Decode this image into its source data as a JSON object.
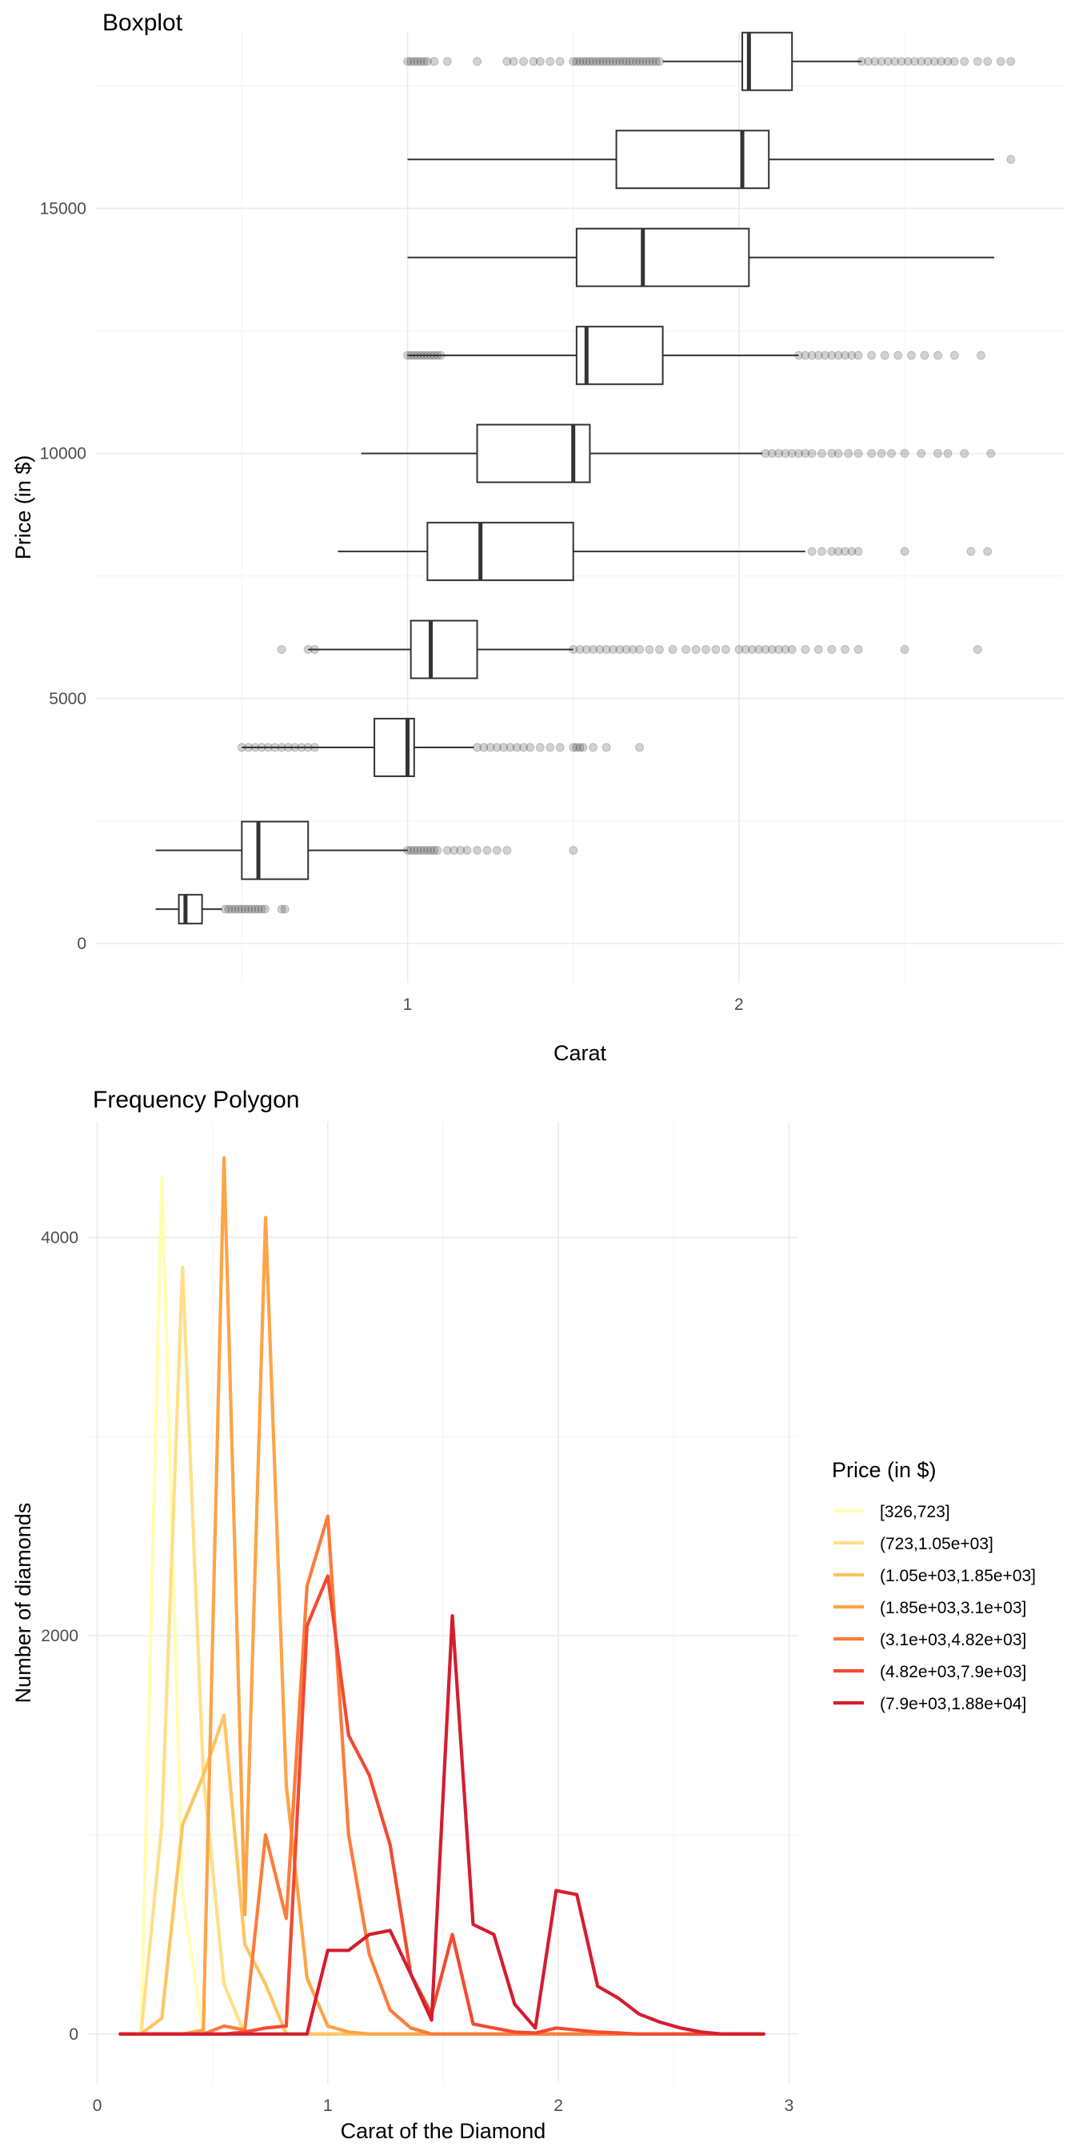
{
  "chart_data": [
    {
      "type": "boxplot",
      "title": "Boxplot",
      "xlabel": "Carat",
      "ylabel": "Price (in $)",
      "xlim": [
        0.06,
        2.98
      ],
      "ylim": [
        -800,
        18600
      ],
      "xticks": [
        1,
        2
      ],
      "yticks": [
        0,
        5000,
        10000,
        15000
      ],
      "grid": true,
      "boxes": [
        {
          "price": 700,
          "whisker_low": 0.24,
          "q1": 0.31,
          "median": 0.33,
          "q3": 0.38,
          "whisker_high": 0.44,
          "outliers": [
            0.45,
            0.46,
            0.47,
            0.48,
            0.49,
            0.5,
            0.51,
            0.52,
            0.53,
            0.54,
            0.55,
            0.56,
            0.57,
            0.62,
            0.63
          ]
        },
        {
          "price": 1900,
          "whisker_low": 0.24,
          "q1": 0.5,
          "median": 0.55,
          "q3": 0.7,
          "whisker_high": 1.0,
          "outliers": [
            1.0,
            1.01,
            1.02,
            1.03,
            1.04,
            1.05,
            1.06,
            1.07,
            1.08,
            1.09,
            1.12,
            1.14,
            1.16,
            1.18,
            1.21,
            1.24,
            1.27,
            1.3,
            1.5
          ]
        },
        {
          "price": 4000,
          "whisker_low": 0.5,
          "q1": 0.9,
          "median": 1.0,
          "q3": 1.02,
          "whisker_high": 1.2,
          "outliers": [
            0.5,
            0.52,
            0.54,
            0.56,
            0.58,
            0.6,
            0.62,
            0.64,
            0.66,
            0.68,
            0.7,
            0.72,
            1.21,
            1.23,
            1.25,
            1.27,
            1.29,
            1.31,
            1.33,
            1.35,
            1.37,
            1.4,
            1.43,
            1.46,
            1.5,
            1.51,
            1.52,
            1.53,
            1.56,
            1.6,
            1.7
          ]
        },
        {
          "price": 6000,
          "whisker_low": 0.7,
          "q1": 1.01,
          "median": 1.07,
          "q3": 1.21,
          "whisker_high": 1.5,
          "outliers": [
            0.62,
            0.7,
            0.72,
            1.5,
            1.52,
            1.54,
            1.56,
            1.58,
            1.6,
            1.62,
            1.64,
            1.66,
            1.68,
            1.7,
            1.73,
            1.76,
            1.8,
            1.84,
            1.87,
            1.9,
            1.93,
            1.96,
            2.0,
            2.02,
            2.04,
            2.06,
            2.08,
            2.1,
            2.12,
            2.14,
            2.16,
            2.2,
            2.24,
            2.28,
            2.32,
            2.36,
            2.5,
            2.72
          ]
        },
        {
          "price": 8000,
          "whisker_low": 0.79,
          "q1": 1.06,
          "median": 1.22,
          "q3": 1.5,
          "whisker_high": 2.2,
          "outliers": [
            2.22,
            2.25,
            2.28,
            2.3,
            2.32,
            2.34,
            2.36,
            2.5,
            2.7,
            2.75
          ]
        },
        {
          "price": 10000,
          "whisker_low": 0.86,
          "q1": 1.21,
          "median": 1.5,
          "q3": 1.55,
          "whisker_high": 2.07,
          "outliers": [
            2.08,
            2.1,
            2.12,
            2.14,
            2.16,
            2.18,
            2.2,
            2.22,
            2.25,
            2.28,
            2.3,
            2.33,
            2.36,
            2.4,
            2.43,
            2.46,
            2.5,
            2.55,
            2.6,
            2.63,
            2.68,
            2.76
          ]
        },
        {
          "price": 12000,
          "whisker_low": 1.0,
          "q1": 1.51,
          "median": 1.54,
          "q3": 1.77,
          "whisker_high": 2.18,
          "outliers": [
            1.0,
            1.01,
            1.02,
            1.03,
            1.04,
            1.05,
            1.06,
            1.07,
            1.08,
            1.09,
            1.1,
            2.18,
            2.2,
            2.22,
            2.24,
            2.26,
            2.28,
            2.3,
            2.32,
            2.34,
            2.36,
            2.4,
            2.44,
            2.48,
            2.52,
            2.56,
            2.6,
            2.65,
            2.73
          ]
        },
        {
          "price": 14000,
          "whisker_low": 1.0,
          "q1": 1.51,
          "median": 1.71,
          "q3": 2.03,
          "whisker_high": 2.77,
          "outliers": []
        },
        {
          "price": 16000,
          "whisker_low": 1.0,
          "q1": 1.63,
          "median": 2.01,
          "q3": 2.09,
          "whisker_high": 2.77,
          "outliers": [
            2.82
          ]
        },
        {
          "price": 18000,
          "whisker_low": 1.77,
          "q1": 2.01,
          "median": 2.03,
          "q3": 2.16,
          "whisker_high": 2.37,
          "outliers": [
            1.0,
            1.01,
            1.02,
            1.03,
            1.04,
            1.05,
            1.06,
            1.08,
            1.12,
            1.21,
            1.3,
            1.32,
            1.35,
            1.38,
            1.4,
            1.43,
            1.46,
            1.5,
            1.51,
            1.52,
            1.53,
            1.54,
            1.55,
            1.56,
            1.57,
            1.58,
            1.59,
            1.6,
            1.61,
            1.62,
            1.63,
            1.64,
            1.65,
            1.66,
            1.67,
            1.68,
            1.69,
            1.7,
            1.71,
            1.72,
            1.73,
            1.74,
            1.75,
            1.76,
            2.37,
            2.39,
            2.41,
            2.43,
            2.45,
            2.47,
            2.49,
            2.51,
            2.53,
            2.55,
            2.57,
            2.59,
            2.61,
            2.63,
            2.65,
            2.68,
            2.72,
            2.75,
            2.79,
            2.82
          ]
        }
      ]
    },
    {
      "type": "line",
      "title": "Frequency Polygon",
      "xlabel": "Carat of the Diamond",
      "ylabel": "Number of diamonds",
      "xlim": [
        -0.04,
        3.04
      ],
      "ylim": [
        -250,
        4580
      ],
      "xticks": [
        0,
        1,
        2,
        3
      ],
      "yticks": [
        0,
        2000,
        4000
      ],
      "grid": true,
      "legend_title": "Price (in $)",
      "legend_position": "right",
      "x": [
        0.1,
        0.19,
        0.28,
        0.37,
        0.46,
        0.55,
        0.64,
        0.73,
        0.82,
        0.91,
        1.0,
        1.09,
        1.18,
        1.27,
        1.36,
        1.45,
        1.54,
        1.63,
        1.72,
        1.81,
        1.9,
        1.99,
        2.08,
        2.17,
        2.26,
        2.35,
        2.44,
        2.53,
        2.62,
        2.71,
        2.8,
        2.89
      ],
      "series": [
        {
          "name": "[326,723]",
          "color": "#ffffb2",
          "values": [
            0,
            0,
            4300,
            700,
            0,
            0,
            0,
            0,
            0,
            0,
            0,
            0,
            0,
            0,
            0,
            0,
            0,
            0,
            0,
            0,
            0,
            0,
            0,
            0,
            0,
            0,
            0,
            0,
            0,
            0,
            0,
            0
          ]
        },
        {
          "name": "(723,1.05e+03]",
          "color": "#fee087",
          "values": [
            0,
            0,
            1050,
            3850,
            1300,
            250,
            0,
            0,
            0,
            0,
            0,
            0,
            0,
            0,
            0,
            0,
            0,
            0,
            0,
            0,
            0,
            0,
            0,
            0,
            0,
            0,
            0,
            0,
            0,
            0,
            0,
            0
          ]
        },
        {
          "name": "(1.05e+03,1.85e+03]",
          "color": "#fec561",
          "values": [
            0,
            0,
            80,
            1050,
            1300,
            1600,
            450,
            250,
            0,
            0,
            0,
            0,
            0,
            0,
            0,
            0,
            0,
            0,
            0,
            0,
            0,
            0,
            0,
            0,
            0,
            0,
            0,
            0,
            0,
            0,
            0,
            0
          ]
        },
        {
          "name": "(1.85e+03,3.1e+03]",
          "color": "#fda446",
          "values": [
            0,
            0,
            0,
            0,
            20,
            4400,
            600,
            4100,
            1250,
            280,
            40,
            10,
            0,
            0,
            0,
            0,
            0,
            0,
            0,
            0,
            0,
            0,
            0,
            0,
            0,
            0,
            0,
            0,
            0,
            0,
            0,
            0
          ]
        },
        {
          "name": "(3.1e+03,4.82e+03]",
          "color": "#fc7d3b",
          "values": [
            0,
            0,
            0,
            0,
            0,
            40,
            20,
            1000,
            580,
            2250,
            2600,
            1000,
            400,
            120,
            30,
            0,
            0,
            0,
            0,
            0,
            0,
            0,
            0,
            0,
            0,
            0,
            0,
            0,
            0,
            0,
            0,
            0
          ]
        },
        {
          "name": "(4.82e+03,7.9e+03]",
          "color": "#f34a32",
          "values": [
            0,
            0,
            0,
            0,
            0,
            0,
            10,
            30,
            40,
            2050,
            2300,
            1500,
            1300,
            950,
            300,
            100,
            500,
            50,
            30,
            10,
            5,
            30,
            20,
            10,
            5,
            0,
            0,
            0,
            0,
            0,
            0,
            0
          ]
        },
        {
          "name": "(7.9e+03,1.88e+04]",
          "color": "#d31e2f",
          "values": [
            0,
            0,
            0,
            0,
            0,
            0,
            0,
            0,
            0,
            0,
            420,
            420,
            500,
            520,
            300,
            70,
            2100,
            550,
            500,
            150,
            30,
            720,
            700,
            240,
            180,
            100,
            60,
            30,
            10,
            0,
            0,
            0
          ]
        }
      ]
    }
  ]
}
